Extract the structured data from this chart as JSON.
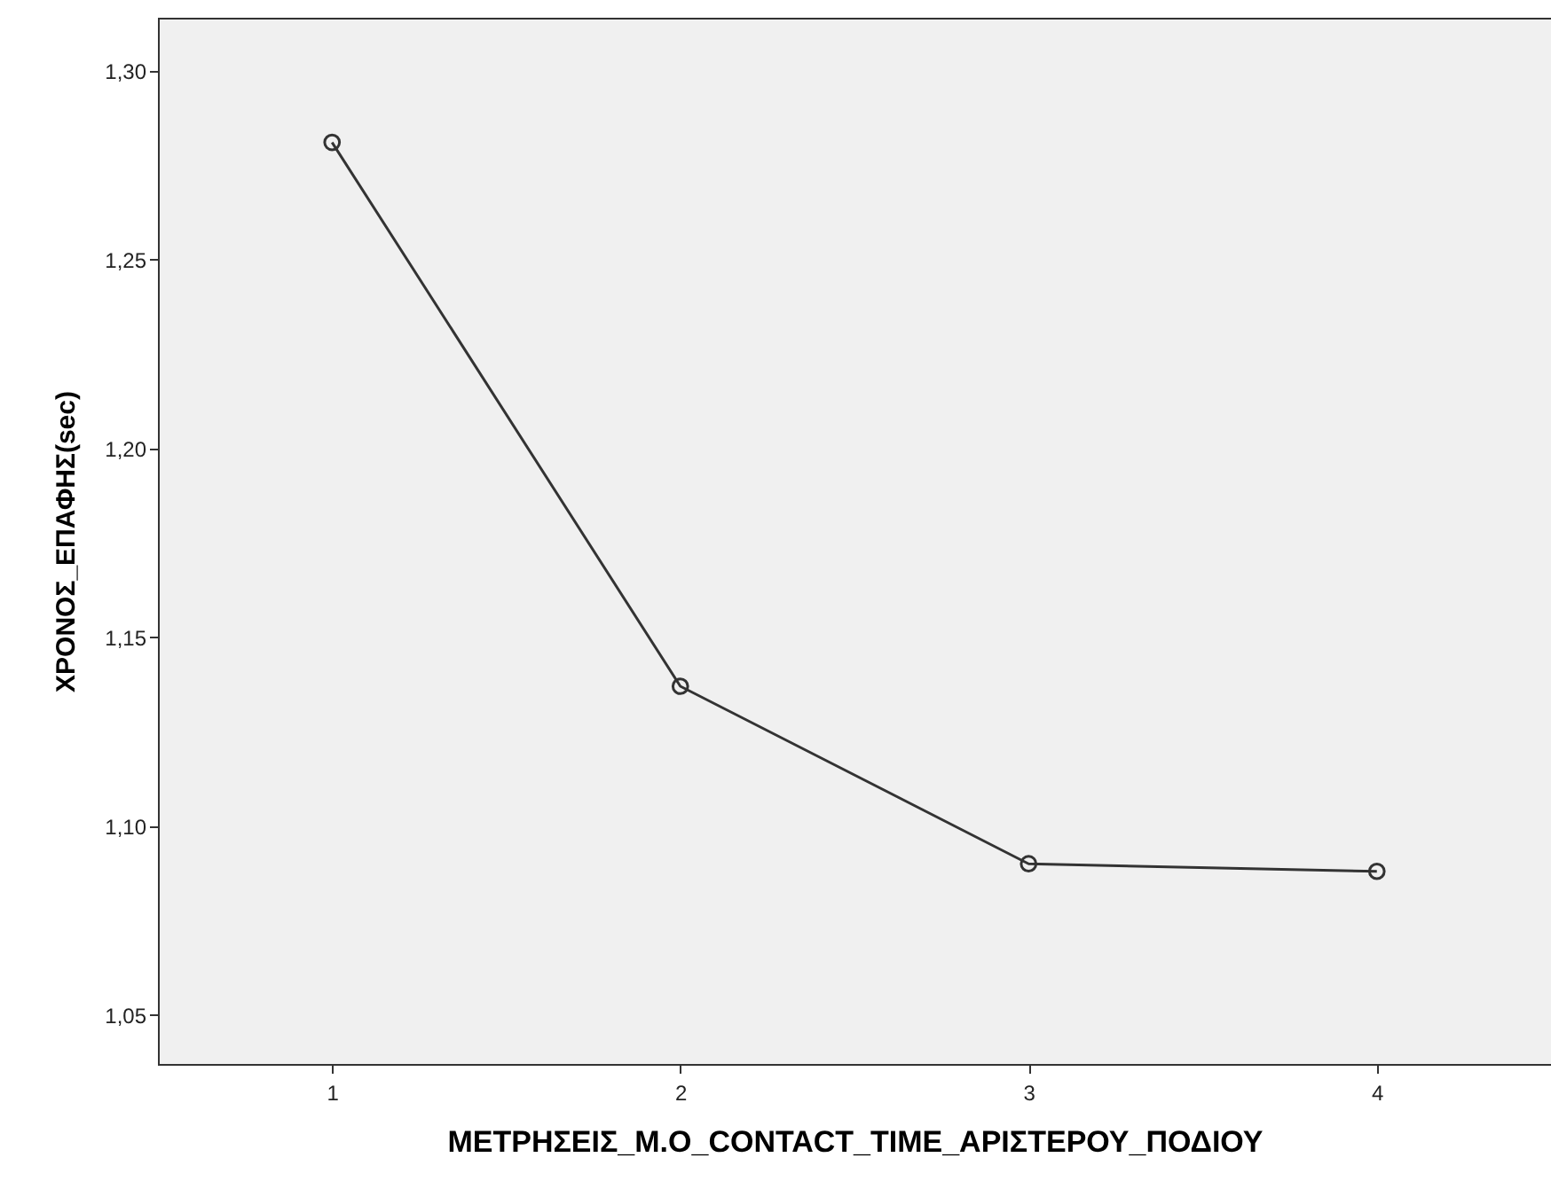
{
  "chart_data": {
    "type": "line",
    "xlabel": "ΜΕΤΡΗΣΕΙΣ_Μ.Ο_CONTACT_TIME_ΑΡΙΣΤΕΡΟΥ_ΠΟΔΙΟΥ",
    "ylabel": "ΧΡΟΝΟΣ_ΕΠΑΦΗΣ(sec)",
    "categories": [
      "1",
      "2",
      "3",
      "4"
    ],
    "series": [
      {
        "color": "#333333",
        "values": [
          1.281,
          1.137,
          1.09,
          1.088
        ]
      }
    ],
    "ylim": [
      1.037,
      1.314
    ],
    "yticks": [
      {
        "value": 1.05,
        "label": "1,05"
      },
      {
        "value": 1.1,
        "label": "1,10"
      },
      {
        "value": 1.15,
        "label": "1,15"
      },
      {
        "value": 1.2,
        "label": "1,20"
      },
      {
        "value": 1.25,
        "label": "1,25"
      },
      {
        "value": 1.3,
        "label": "1,30"
      }
    ],
    "grid": false,
    "marker": "circle",
    "line_style": "solid"
  }
}
